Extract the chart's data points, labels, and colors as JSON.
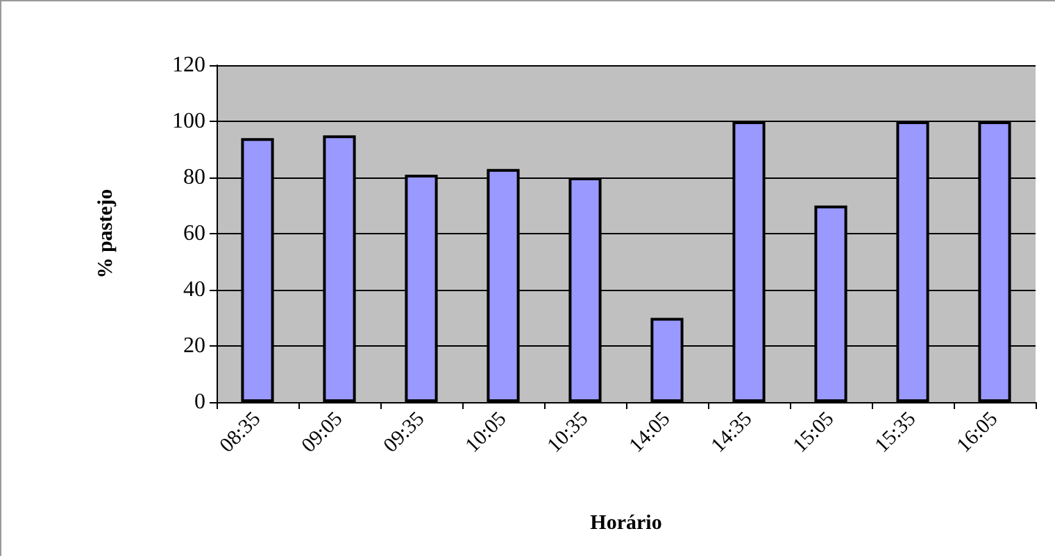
{
  "chart_data": {
    "type": "bar",
    "xlabel": "Horário",
    "ylabel": "% pastejo",
    "categories": [
      "08:35",
      "09:05",
      "09:35",
      "10:05",
      "10:35",
      "14:05",
      "14:35",
      "15:05",
      "15:35",
      "16:05"
    ],
    "values": [
      94,
      95,
      81,
      83,
      80,
      30,
      100,
      70,
      100,
      100
    ],
    "color": "#9999ff",
    "ylim": [
      0,
      120
    ],
    "yticks": [
      0,
      20,
      40,
      60,
      80,
      100,
      120
    ],
    "grid": "y"
  }
}
